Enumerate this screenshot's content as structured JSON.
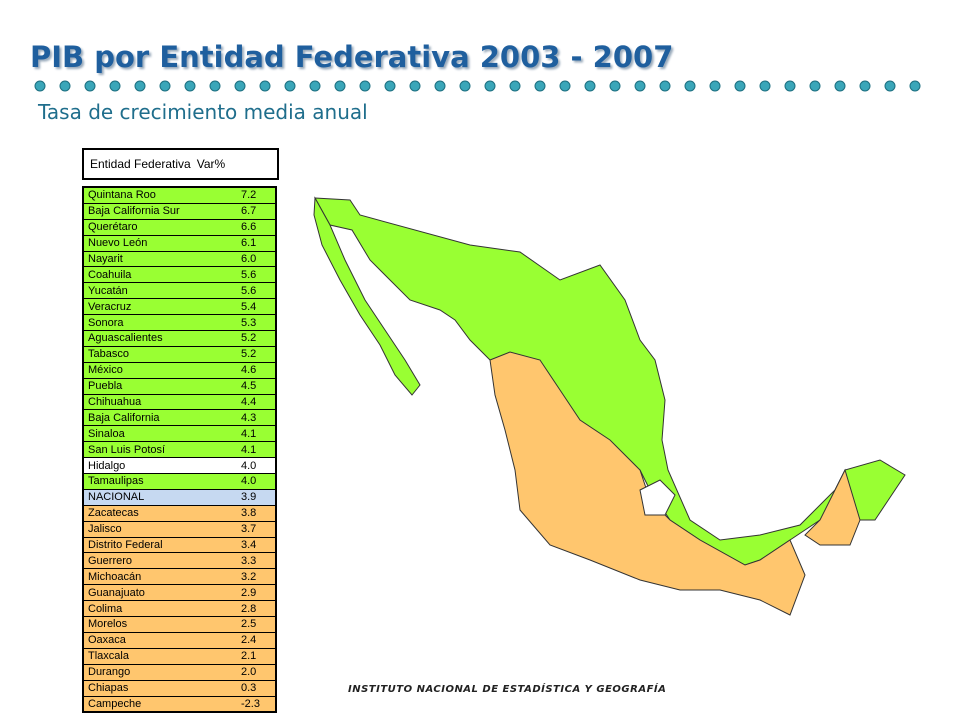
{
  "header": {
    "title": "PIB por Entidad Federativa 2003 - 2007",
    "subtitle": "Tasa de crecimiento media anual"
  },
  "table": {
    "columns": [
      "Entidad Federativa",
      "Var%"
    ],
    "rows": [
      {
        "name": "Quintana Roo",
        "value": "7.2",
        "color": "#99ff33"
      },
      {
        "name": "Baja California Sur",
        "value": "6.7",
        "color": "#99ff33"
      },
      {
        "name": "Querétaro",
        "value": "6.6",
        "color": "#99ff33"
      },
      {
        "name": "Nuevo León",
        "value": "6.1",
        "color": "#99ff33"
      },
      {
        "name": "Nayarit",
        "value": "6.0",
        "color": "#99ff33"
      },
      {
        "name": "Coahuila",
        "value": "5.6",
        "color": "#99ff33"
      },
      {
        "name": "Yucatán",
        "value": "5.6",
        "color": "#99ff33"
      },
      {
        "name": "Veracruz",
        "value": "5.4",
        "color": "#99ff33"
      },
      {
        "name": "Sonora",
        "value": "5.3",
        "color": "#99ff33"
      },
      {
        "name": "Aguascalientes",
        "value": "5.2",
        "color": "#99ff33"
      },
      {
        "name": "Tabasco",
        "value": "5.2",
        "color": "#99ff33"
      },
      {
        "name": "México",
        "value": "4.6",
        "color": "#99ff33"
      },
      {
        "name": "Puebla",
        "value": "4.5",
        "color": "#99ff33"
      },
      {
        "name": "Chihuahua",
        "value": "4.4",
        "color": "#99ff33"
      },
      {
        "name": "Baja California",
        "value": "4.3",
        "color": "#99ff33"
      },
      {
        "name": "Sinaloa",
        "value": "4.1",
        "color": "#99ff33"
      },
      {
        "name": "San Luis Potosí",
        "value": "4.1",
        "color": "#99ff33"
      },
      {
        "name": "Hidalgo",
        "value": "4.0",
        "color": "#ffffff"
      },
      {
        "name": "Tamaulipas",
        "value": "4.0",
        "color": "#99ff33"
      },
      {
        "name": "NACIONAL",
        "value": "3.9",
        "color": "#c6d9f1"
      },
      {
        "name": "Zacatecas",
        "value": "3.8",
        "color": "#ffc66e"
      },
      {
        "name": "Jalisco",
        "value": "3.7",
        "color": "#ffc66e"
      },
      {
        "name": "Distrito Federal",
        "value": "3.4",
        "color": "#ffc66e"
      },
      {
        "name": "Guerrero",
        "value": "3.3",
        "color": "#ffc66e"
      },
      {
        "name": "Michoacán",
        "value": "3.2",
        "color": "#ffc66e"
      },
      {
        "name": "Guanajuato",
        "value": "2.9",
        "color": "#ffc66e"
      },
      {
        "name": "Colima",
        "value": "2.8",
        "color": "#ffc66e"
      },
      {
        "name": "Morelos",
        "value": "2.5",
        "color": "#ffc66e"
      },
      {
        "name": "Oaxaca",
        "value": "2.4",
        "color": "#ffc66e"
      },
      {
        "name": "Tlaxcala",
        "value": "2.1",
        "color": "#ffc66e"
      },
      {
        "name": "Durango",
        "value": "2.0",
        "color": "#ffc66e"
      },
      {
        "name": "Chiapas",
        "value": "0.3",
        "color": "#ffc66e"
      },
      {
        "name": "Campeche",
        "value": "-2.3",
        "color": "#ffc66e"
      }
    ]
  },
  "footer": {
    "text": "INSTITUTO NACIONAL DE ESTADÍSTICA Y GEOGRAFÍA"
  }
}
